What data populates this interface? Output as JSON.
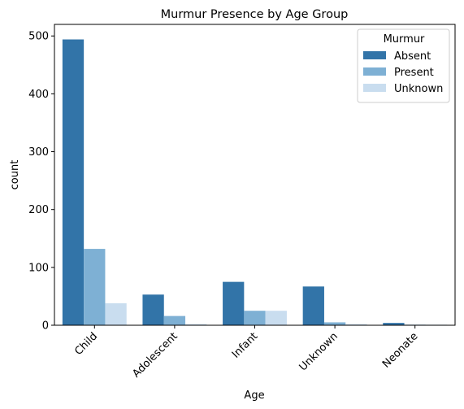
{
  "chart_data": {
    "type": "bar",
    "title": "Murmur Presence by Age Group",
    "xlabel": "Age",
    "ylabel": "count",
    "categories": [
      "Child",
      "Adolescent",
      "Infant",
      "Unknown",
      "Neonate"
    ],
    "series": [
      {
        "name": "Absent",
        "color": "#3274a8",
        "values": [
          494,
          53,
          75,
          67,
          4
        ]
      },
      {
        "name": "Present",
        "color": "#7eb0d4",
        "values": [
          132,
          16,
          25,
          5,
          1
        ]
      },
      {
        "name": "Unknown",
        "color": "#c9ddef",
        "values": [
          38,
          2,
          25,
          2,
          1
        ]
      }
    ],
    "ylim": [
      0,
      520
    ],
    "yticks": [
      0,
      100,
      200,
      300,
      400,
      500
    ],
    "legend": {
      "title": "Murmur",
      "placement": "top-right"
    },
    "grid": false
  }
}
